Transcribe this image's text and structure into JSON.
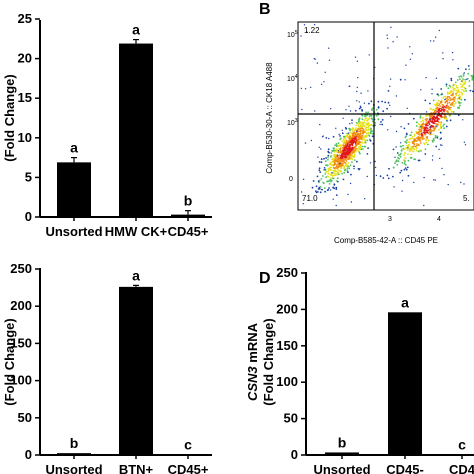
{
  "panels": {
    "b_label": "B",
    "d_label": "D"
  },
  "chart_data": [
    {
      "id": "A",
      "type": "bar",
      "ylabel": "(Fold Change)",
      "ylim": [
        0,
        25
      ],
      "yticks": [
        0,
        5,
        10,
        15,
        20,
        25
      ],
      "categories": [
        "Unsorted",
        "HMW CK+",
        "CD45+"
      ],
      "values": [
        6.9,
        21.9,
        0.3
      ],
      "errors": [
        0.6,
        0.5,
        0.5
      ],
      "letters": [
        "a",
        "a",
        "b"
      ]
    },
    {
      "id": "B",
      "type": "scatter",
      "xlabel": "Comp-B585-42-A :: CD45 PE",
      "ylabel": "Comp-B530-30-A :: CK18 A488",
      "y_tick_labels": [
        "10^5",
        "10^4",
        "10^3",
        "0"
      ],
      "x_tick_labels": [
        "3",
        "4"
      ],
      "quadrant_labels": {
        "top_left": "1.22",
        "bottom_left": "71.0",
        "bottom_right": "5."
      },
      "scale": "log",
      "clusters": [
        {
          "name": "",
          "x_center": 2.4,
          "y_center": 2.4,
          "description": "dense density population, red core"
        },
        {
          "name": "",
          "x_center": 4.2,
          "y_center": 3.6,
          "description": "elongated diagonal population"
        }
      ]
    },
    {
      "id": "C",
      "type": "bar",
      "ylabel": "(Fold Change)",
      "ylim": [
        0,
        250
      ],
      "yticks": [
        0,
        50,
        100,
        150,
        200,
        250
      ],
      "categories": [
        "Unsorted",
        "BTN+",
        "CD45+"
      ],
      "values": [
        2.5,
        226,
        0.5
      ],
      "errors": [
        0,
        2,
        0
      ],
      "letters": [
        "b",
        "a",
        "c"
      ]
    },
    {
      "id": "D",
      "type": "bar",
      "ylabel_gene": "CSN3",
      "ylabel_rest": " mRNA",
      "ylabel2": "(Fold Change)",
      "ylim": [
        0,
        250
      ],
      "yticks": [
        0,
        50,
        100,
        150,
        200,
        250
      ],
      "categories": [
        "Unsorted",
        "CD45-",
        "CD4"
      ],
      "values": [
        3.5,
        196,
        0.5
      ],
      "errors": [
        0,
        0,
        0
      ],
      "letters": [
        "b",
        "a",
        "c"
      ]
    }
  ]
}
